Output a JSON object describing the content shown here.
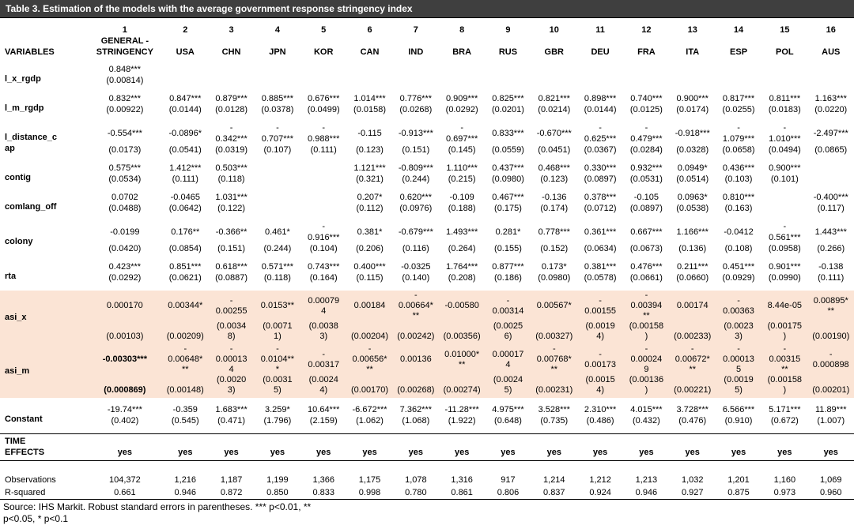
{
  "title": "Table 3. Estimation of the models with the average government response stringency index",
  "colors": {
    "title_bar": "#3f3f3f",
    "highlight": "#fbe4d5"
  },
  "header": {
    "numbers": [
      "1",
      "2",
      "3",
      "4",
      "5",
      "6",
      "7",
      "8",
      "9",
      "10",
      "11",
      "12",
      "13",
      "14",
      "15",
      "16"
    ],
    "variables_label": "VARIABLES",
    "col_names": [
      "GENERAL -\nSTRINGENCY",
      "USA",
      "CHN",
      "JPN",
      "KOR",
      "CAN",
      "IND",
      "BRA",
      "RUS",
      "GBR",
      "DEU",
      "FRA",
      "ITA",
      "ESP",
      "POL",
      "AUS"
    ]
  },
  "rows": [
    {
      "label": "l_x_rgdp",
      "coef": [
        "0.848***",
        "",
        "",
        "",
        "",
        "",
        "",
        "",
        "",
        "",
        "",
        "",
        "",
        "",
        "",
        ""
      ],
      "se": [
        "(0.00814)",
        "",
        "",
        "",
        "",
        "",
        "",
        "",
        "",
        "",
        "",
        "",
        "",
        "",
        "",
        ""
      ]
    },
    {
      "label": "l_m_rgdp",
      "coef": [
        "0.832***",
        "0.847***",
        "0.879***",
        "0.885***",
        "0.676***",
        "1.014***",
        "0.776***",
        "0.909***",
        "0.825***",
        "0.821***",
        "0.898***",
        "0.740***",
        "0.900***",
        "0.817***",
        "0.811***",
        "1.163***"
      ],
      "se": [
        "(0.00922)",
        "(0.0144)",
        "(0.0128)",
        "(0.0378)",
        "(0.0499)",
        "(0.0158)",
        "(0.0268)",
        "(0.0292)",
        "(0.0201)",
        "(0.0214)",
        "(0.0144)",
        "(0.0125)",
        "(0.0174)",
        "(0.0255)",
        "(0.0183)",
        "(0.0220)"
      ]
    },
    {
      "label": "l_distance_c\nap",
      "coef": [
        "-0.554***",
        "-0.0896*",
        "-\n0.342***",
        "-\n0.707***",
        "-\n0.988***",
        "-0.115",
        "-0.913***",
        "-\n0.697***",
        "0.833***",
        "-0.670***",
        "-\n0.625***",
        "-\n0.479***",
        "-0.918***",
        "-\n1.079***",
        "-\n1.010***",
        "-2.497***"
      ],
      "se": [
        "(0.0173)",
        "(0.0541)",
        "(0.0319)",
        "(0.107)",
        "(0.111)",
        "(0.123)",
        "(0.151)",
        "(0.145)",
        "(0.0559)",
        "(0.0451)",
        "(0.0367)",
        "(0.0284)",
        "(0.0328)",
        "(0.0658)",
        "(0.0494)",
        "(0.0865)"
      ]
    },
    {
      "label": "contig",
      "coef": [
        "0.575***",
        "1.412***",
        "0.503***",
        "",
        "",
        "1.121***",
        "-0.809***",
        "1.110***",
        "0.437***",
        "0.468***",
        "0.330***",
        "0.932***",
        "0.0949*",
        "0.436***",
        "0.900***",
        ""
      ],
      "se": [
        "(0.0534)",
        "(0.111)",
        "(0.118)",
        "",
        "",
        "(0.321)",
        "(0.244)",
        "(0.215)",
        "(0.0980)",
        "(0.123)",
        "(0.0897)",
        "(0.0531)",
        "(0.0514)",
        "(0.103)",
        "(0.101)",
        ""
      ]
    },
    {
      "label": "comlang_off",
      "coef": [
        "0.0702",
        "-0.0465",
        "1.031***",
        "",
        "",
        "0.207*",
        "0.620***",
        "-0.109",
        "0.467***",
        "-0.136",
        "0.378***",
        "-0.105",
        "0.0963*",
        "0.810***",
        "",
        "-0.400***"
      ],
      "se": [
        "(0.0488)",
        "(0.0642)",
        "(0.122)",
        "",
        "",
        "(0.112)",
        "(0.0976)",
        "(0.188)",
        "(0.175)",
        "(0.174)",
        "(0.0712)",
        "(0.0897)",
        "(0.0538)",
        "(0.163)",
        "",
        "(0.117)"
      ]
    },
    {
      "label": "colony",
      "coef": [
        "-0.0199",
        "0.176**",
        "-0.366**",
        "0.461*",
        "-\n0.916***",
        "0.381*",
        "-0.679***",
        "1.493***",
        "0.281*",
        "0.778***",
        "0.361***",
        "0.667***",
        "1.166***",
        "-0.0412",
        "-\n0.561***",
        "1.443***"
      ],
      "se": [
        "(0.0420)",
        "(0.0854)",
        "(0.151)",
        "(0.244)",
        "(0.104)",
        "(0.206)",
        "(0.116)",
        "(0.264)",
        "(0.155)",
        "(0.152)",
        "(0.0634)",
        "(0.0673)",
        "(0.136)",
        "(0.108)",
        "(0.0958)",
        "(0.266)"
      ]
    },
    {
      "label": "rta",
      "coef": [
        "0.423***",
        "0.851***",
        "0.618***",
        "0.571***",
        "0.743***",
        "0.400***",
        "-0.0325",
        "1.764***",
        "0.877***",
        "0.173*",
        "0.381***",
        "0.476***",
        "0.211***",
        "0.451***",
        "0.901***",
        "-0.138"
      ],
      "se": [
        "(0.0292)",
        "(0.0621)",
        "(0.0887)",
        "(0.118)",
        "(0.164)",
        "(0.115)",
        "(0.140)",
        "(0.208)",
        "(0.186)",
        "(0.0980)",
        "(0.0578)",
        "(0.0661)",
        "(0.0660)",
        "(0.0929)",
        "(0.0990)",
        "(0.111)"
      ]
    },
    {
      "label": "asi_x",
      "highlight": true,
      "coef": [
        "0.000170",
        "0.00344*",
        "-\n0.00255",
        "0.0153**",
        "0.00079\n4",
        "0.00184",
        "-\n0.00664*\n**",
        "-0.00580",
        "-\n0.00314",
        "0.00567*",
        "-\n0.00155",
        "-\n0.00394\n**",
        "0.00174",
        "-\n0.00363",
        "8.44e-05",
        "0.00895*\n**"
      ],
      "se": [
        "(0.00103)",
        "(0.00209)",
        "(0.0034\n8)",
        "(0.0071\n1)",
        "(0.0038\n3)",
        "(0.00204)",
        "(0.00242)",
        "(0.00356)",
        "(0.0025\n6)",
        "(0.00327)",
        "(0.0019\n4)",
        "(0.00158\n)",
        "(0.00233)",
        "(0.0023\n3)",
        "(0.00175\n)",
        "(0.00190)"
      ]
    },
    {
      "label": "asi_m",
      "highlight": true,
      "bold_first": true,
      "coef": [
        "-0.00303***",
        "-\n0.00648*\n**",
        "-\n0.00013\n4",
        "-\n0.0104**\n*",
        "-\n0.00317",
        "-\n0.00656*\n**",
        "0.00136",
        "0.01000*\n**",
        "0.00017\n4",
        "-\n0.00768*\n**",
        "-\n0.00173",
        "-\n0.00024\n9",
        "-\n0.00672*\n**",
        "-\n0.00013\n5",
        "-\n0.00315\n**",
        "-\n0.000898"
      ],
      "se": [
        "(0.000869)",
        "(0.00148)",
        "(0.0020\n3)",
        "(0.0031\n5)",
        "(0.0024\n4)",
        "(0.00170)",
        "(0.00268)",
        "(0.00274)",
        "(0.0024\n5)",
        "(0.00231)",
        "(0.0015\n4)",
        "(0.00136\n)",
        "(0.00221)",
        "(0.0019\n5)",
        "(0.00158\n)",
        "(0.00201)"
      ]
    },
    {
      "label": "Constant",
      "gap_before": true,
      "coef": [
        "-19.74***",
        "-0.359",
        "1.683***",
        "3.259*",
        "10.64***",
        "-6.672***",
        "7.362***",
        "-11.28***",
        "4.975***",
        "3.528***",
        "2.310***",
        "4.015***",
        "3.728***",
        "6.566***",
        "5.171***",
        "11.89***"
      ],
      "se": [
        "(0.402)",
        "(0.545)",
        "(0.471)",
        "(1.796)",
        "(2.159)",
        "(1.062)",
        "(1.068)",
        "(1.922)",
        "(0.648)",
        "(0.735)",
        "(0.486)",
        "(0.432)",
        "(0.476)",
        "(0.910)",
        "(0.672)",
        "(1.007)"
      ]
    }
  ],
  "time_effects": {
    "label": "TIME\nEFFECTS",
    "values": [
      "yes",
      "yes",
      "yes",
      "yes",
      "yes",
      "yes",
      "yes",
      "yes",
      "yes",
      "yes",
      "yes",
      "yes",
      "yes",
      "yes",
      "yes",
      "yes"
    ]
  },
  "stats": [
    {
      "label": "Observations",
      "values": [
        "104,372",
        "1,216",
        "1,187",
        "1,199",
        "1,366",
        "1,175",
        "1,078",
        "1,316",
        "917",
        "1,214",
        "1,212",
        "1,213",
        "1,032",
        "1,201",
        "1,160",
        "1,069"
      ]
    },
    {
      "label": "R-squared",
      "values": [
        "0.661",
        "0.946",
        "0.872",
        "0.850",
        "0.833",
        "0.998",
        "0.780",
        "0.861",
        "0.806",
        "0.837",
        "0.924",
        "0.946",
        "0.927",
        "0.875",
        "0.973",
        "0.960"
      ]
    }
  ],
  "footer": "Source: IHS Markit. Robust standard errors in parentheses. *** p<0.01, **\np<0.05, * p<0.1"
}
